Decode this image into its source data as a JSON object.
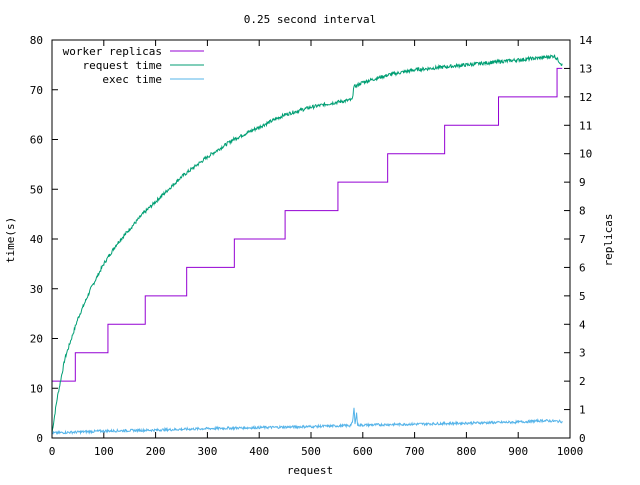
{
  "chart_data": {
    "type": "line",
    "title": "0.25 second interval",
    "xlabel": "request",
    "ylabel": "time(s)",
    "y2label": "replicas",
    "xlim": [
      0,
      1000
    ],
    "ylim": [
      0,
      80
    ],
    "y2lim": [
      0,
      14
    ],
    "xticks": [
      0,
      100,
      200,
      300,
      400,
      500,
      600,
      700,
      800,
      900,
      1000
    ],
    "yticks": [
      0,
      10,
      20,
      30,
      40,
      50,
      60,
      70,
      80
    ],
    "y2ticks": [
      0,
      1,
      2,
      3,
      4,
      5,
      6,
      7,
      8,
      9,
      10,
      11,
      12,
      13,
      14
    ],
    "grid": false,
    "legend_position": "top-left",
    "series": [
      {
        "name": "worker replicas",
        "axis": "y2",
        "color": "#9400d3",
        "step": true,
        "x": [
          0,
          45,
          108,
          180,
          260,
          352,
          450,
          552,
          648,
          758,
          862,
          975,
          985
        ],
        "y": [
          2,
          3,
          4,
          5,
          6,
          7,
          8,
          9,
          10,
          11,
          12,
          13,
          13
        ]
      },
      {
        "name": "request time",
        "axis": "y",
        "color": "#009e73",
        "step": false,
        "x": [
          0,
          10,
          25,
          50,
          75,
          100,
          125,
          150,
          175,
          200,
          250,
          300,
          350,
          400,
          450,
          500,
          550,
          580,
          582,
          600,
          650,
          700,
          750,
          800,
          850,
          900,
          950,
          970,
          985
        ],
        "y": [
          1,
          8,
          16,
          24,
          30,
          35,
          39,
          42,
          45,
          47.5,
          52.5,
          56.5,
          60,
          62.5,
          65,
          66.5,
          67.5,
          68,
          70.5,
          71.5,
          73,
          74,
          74.5,
          75,
          75.5,
          76,
          76.5,
          76.8,
          75
        ]
      },
      {
        "name": "exec time",
        "axis": "y",
        "color": "#56b4e9",
        "step": false,
        "x": [
          0,
          50,
          100,
          200,
          300,
          400,
          500,
          575,
          580,
          583,
          585,
          588,
          590,
          600,
          700,
          800,
          900,
          950,
          985
        ],
        "y": [
          1,
          1.2,
          1.4,
          1.6,
          1.9,
          2.1,
          2.3,
          2.5,
          3,
          6,
          3,
          5,
          2.6,
          2.6,
          2.8,
          3,
          3.2,
          3.5,
          3.3
        ]
      }
    ]
  }
}
